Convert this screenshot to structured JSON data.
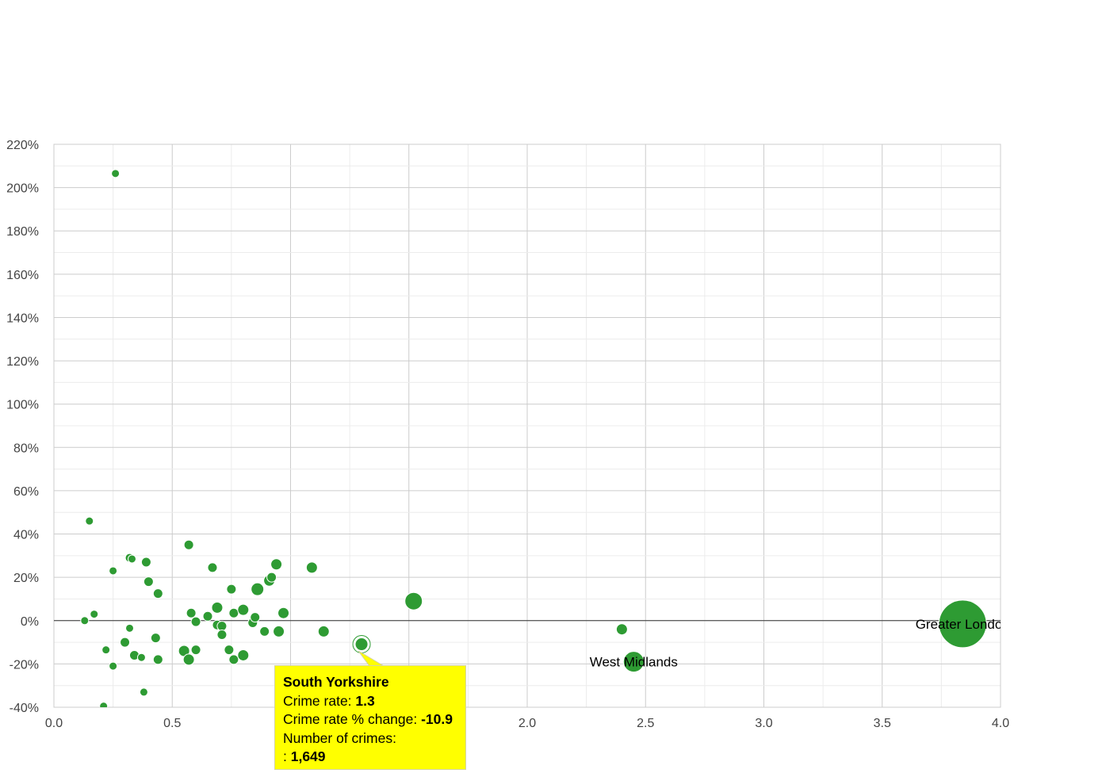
{
  "colors": {
    "point": "#2e9b33",
    "point_stroke": "#ffffff",
    "grid": "#e6e6e6",
    "zero_line": "#333333",
    "tooltip_bg": "#ffff00",
    "tooltip_border": "#d4d4a0"
  },
  "chart_data": {
    "type": "scatter",
    "xlim": [
      0,
      4
    ],
    "ylim": [
      -40,
      220
    ],
    "xticks": [
      "0.0",
      "0.5",
      "1.0",
      "1.5",
      "2.0",
      "2.5",
      "3.0",
      "3.5",
      "4.0"
    ],
    "yticks": [
      "-40%",
      "-20%",
      "0%",
      "20%",
      "40%",
      "60%",
      "80%",
      "100%",
      "120%",
      "140%",
      "160%",
      "180%",
      "200%",
      "220%"
    ],
    "xtick_values": [
      0,
      0.5,
      1,
      1.5,
      2,
      2.5,
      3,
      3.5,
      4
    ],
    "ytick_values": [
      -40,
      -20,
      0,
      20,
      40,
      60,
      80,
      100,
      120,
      140,
      160,
      180,
      200,
      220
    ],
    "grid": true,
    "points": [
      {
        "x": 0.26,
        "y": 206.5,
        "r": 5
      },
      {
        "x": 0.15,
        "y": 46,
        "r": 5
      },
      {
        "x": 0.13,
        "y": 0,
        "r": 5
      },
      {
        "x": 0.17,
        "y": 3,
        "r": 5
      },
      {
        "x": 0.25,
        "y": 23,
        "r": 5
      },
      {
        "x": 0.32,
        "y": 29,
        "r": 5.5
      },
      {
        "x": 0.33,
        "y": 28.5,
        "r": 5
      },
      {
        "x": 0.39,
        "y": 27,
        "r": 6
      },
      {
        "x": 0.4,
        "y": 18,
        "r": 6
      },
      {
        "x": 0.44,
        "y": 12.5,
        "r": 6
      },
      {
        "x": 0.57,
        "y": 35,
        "r": 6
      },
      {
        "x": 0.22,
        "y": -13.5,
        "r": 5
      },
      {
        "x": 0.25,
        "y": -21,
        "r": 5
      },
      {
        "x": 0.21,
        "y": -39.5,
        "r": 5
      },
      {
        "x": 0.3,
        "y": -10,
        "r": 6
      },
      {
        "x": 0.32,
        "y": -3.5,
        "r": 5
      },
      {
        "x": 0.34,
        "y": -16,
        "r": 6
      },
      {
        "x": 0.37,
        "y": -17,
        "r": 5
      },
      {
        "x": 0.38,
        "y": -33,
        "r": 5
      },
      {
        "x": 0.43,
        "y": -8,
        "r": 6
      },
      {
        "x": 0.44,
        "y": -18,
        "r": 6
      },
      {
        "x": 0.55,
        "y": -14,
        "r": 7
      },
      {
        "x": 0.58,
        "y": 3.5,
        "r": 6
      },
      {
        "x": 0.57,
        "y": -18,
        "r": 7
      },
      {
        "x": 0.6,
        "y": -0.5,
        "r": 6
      },
      {
        "x": 0.6,
        "y": -13.5,
        "r": 6
      },
      {
        "x": 0.65,
        "y": 2,
        "r": 6
      },
      {
        "x": 0.67,
        "y": 24.5,
        "r": 6
      },
      {
        "x": 0.69,
        "y": 6,
        "r": 7
      },
      {
        "x": 0.69,
        "y": -2,
        "r": 6
      },
      {
        "x": 0.71,
        "y": -2.5,
        "r": 6
      },
      {
        "x": 0.71,
        "y": -6.5,
        "r": 6
      },
      {
        "x": 0.74,
        "y": -13.5,
        "r": 6
      },
      {
        "x": 0.75,
        "y": 14.5,
        "r": 6
      },
      {
        "x": 0.76,
        "y": 3.5,
        "r": 6
      },
      {
        "x": 0.76,
        "y": -18,
        "r": 6
      },
      {
        "x": 0.8,
        "y": 5,
        "r": 7
      },
      {
        "x": 0.8,
        "y": -16,
        "r": 7
      },
      {
        "x": 0.84,
        "y": -1,
        "r": 6
      },
      {
        "x": 0.85,
        "y": 1.5,
        "r": 6
      },
      {
        "x": 0.86,
        "y": 14.5,
        "r": 8
      },
      {
        "x": 0.89,
        "y": -5,
        "r": 6
      },
      {
        "x": 0.91,
        "y": 18.5,
        "r": 7
      },
      {
        "x": 0.92,
        "y": 20,
        "r": 6
      },
      {
        "x": 0.94,
        "y": 26,
        "r": 7
      },
      {
        "x": 0.95,
        "y": -5,
        "r": 7
      },
      {
        "x": 0.97,
        "y": 3.5,
        "r": 7
      },
      {
        "x": 1.09,
        "y": 24.5,
        "r": 7
      },
      {
        "x": 1.14,
        "y": -5,
        "r": 7
      },
      {
        "x": 1.3,
        "y": -10.9,
        "r": 8,
        "highlighted": true
      },
      {
        "x": 1.52,
        "y": 9,
        "r": 11
      },
      {
        "x": 2.4,
        "y": -4,
        "r": 7
      },
      {
        "x": 2.45,
        "y": -19,
        "r": 13
      },
      {
        "x": 3.84,
        "y": -1.5,
        "r": 30
      }
    ],
    "labeled_points": [
      {
        "name": "West Midlands",
        "x": 2.45,
        "y": -19
      },
      {
        "name": "Greater London",
        "x": 3.84,
        "y": -1.5
      }
    ]
  },
  "tooltip": {
    "title": "South Yorkshire",
    "rate_label": "Crime rate: ",
    "rate_value": "1.3",
    "change_label": "Crime rate % change: ",
    "change_value": "-10.9",
    "count_label": "Number of crimes:",
    "count_prefix": ": ",
    "count_value": "1,649"
  }
}
